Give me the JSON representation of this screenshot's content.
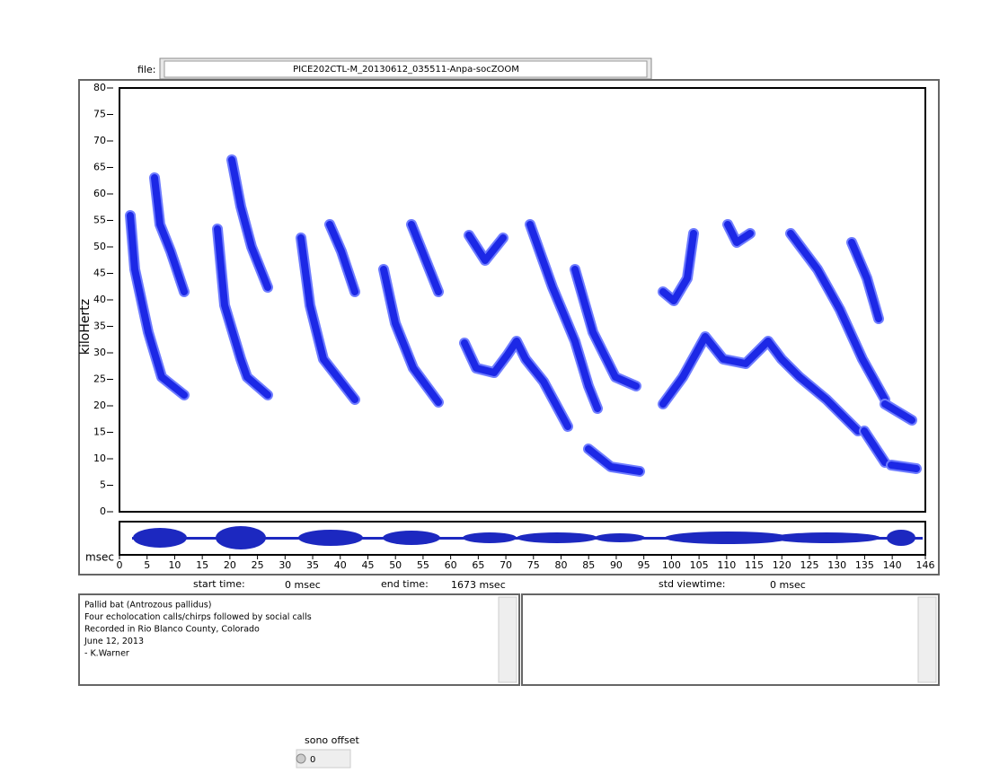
{
  "file_label": "file:",
  "file_name": "PICE202CTL-M_20130612_035511-Anpa-socZOOM",
  "spectrogram": {
    "y_label": "kiloHertz",
    "ylim": [
      0,
      80
    ],
    "yticks": [
      0,
      5,
      10,
      15,
      20,
      25,
      30,
      35,
      40,
      45,
      50,
      55,
      60,
      65,
      70,
      75,
      80
    ],
    "x_unit": "msec",
    "xlim": [
      0,
      146
    ],
    "xticks": [
      0,
      5,
      10,
      15,
      20,
      25,
      30,
      35,
      40,
      45,
      50,
      55,
      60,
      65,
      70,
      75,
      80,
      85,
      90,
      95,
      100,
      105,
      110,
      115,
      120,
      125,
      130,
      135,
      140,
      146
    ]
  },
  "status": {
    "start_label": "start time:",
    "start_value": "0 msec",
    "end_label": "end time:",
    "end_value": "1673 msec",
    "view_label": "std viewtime:",
    "view_value": "0 msec"
  },
  "notes": [
    "Pallid bat (Antrozous pallidus)",
    "Four echolocation calls/chirps followed by social calls",
    "Recorded in Rio Blanco County, Colorado",
    "June 12, 2013",
    "- K.Warner"
  ],
  "sono_offset": {
    "label": "sono offset",
    "value": "0"
  }
}
